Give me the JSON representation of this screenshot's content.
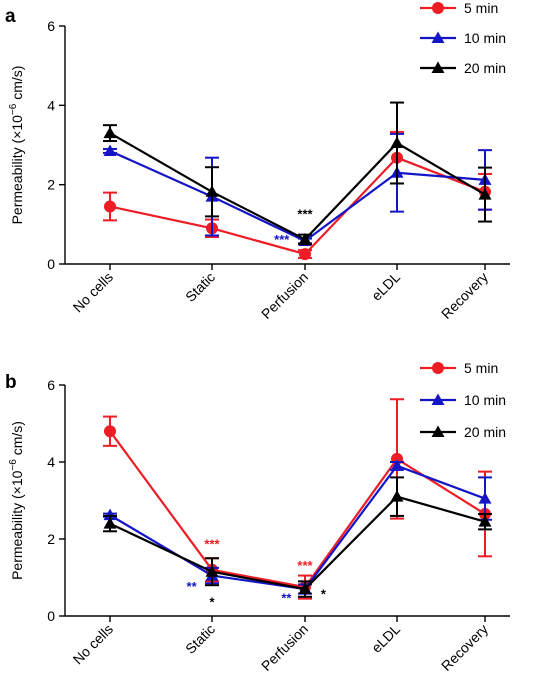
{
  "chart_data": [
    {
      "panel": "a",
      "type": "line",
      "ylabel": {
        "pre": "Permeability (×10",
        "exp": "−6",
        "post": " cm/s)"
      },
      "ylim": [
        0,
        6
      ],
      "yticks": [
        "0",
        "2",
        "4",
        "6"
      ],
      "categories": [
        "No cells",
        "Static",
        "Perfusion",
        "eLDL",
        "Recovery"
      ],
      "legend_position": "top-right",
      "series": [
        {
          "name": "5 min",
          "color": "#ee1c25",
          "marker": "circle",
          "values": [
            1.45,
            0.9,
            0.25,
            2.68,
            1.82
          ],
          "err": [
            0.35,
            0.22,
            0.1,
            0.65,
            0.45
          ]
        },
        {
          "name": "10 min",
          "color": "#1515c8",
          "marker": "triangle",
          "values": [
            2.85,
            1.7,
            0.58,
            2.3,
            2.12
          ],
          "err": [
            0.05,
            0.98,
            0.06,
            0.98,
            0.75
          ]
        },
        {
          "name": "20 min",
          "color": "#000000",
          "marker": "triangle",
          "values": [
            3.3,
            1.82,
            0.62,
            3.05,
            1.75
          ],
          "err": [
            0.2,
            0.62,
            0.12,
            1.02,
            0.68
          ]
        }
      ],
      "annotations": [
        {
          "text": "***",
          "color": "#000000",
          "category": 2,
          "y": 1.15
        },
        {
          "text": "***",
          "color": "#1515c8",
          "category": 1.75,
          "y": 0.5
        }
      ]
    },
    {
      "panel": "b",
      "type": "line",
      "ylabel": {
        "pre": "Permeability (×10",
        "exp": "−6",
        "post": " cm/s)"
      },
      "ylim": [
        0,
        6
      ],
      "yticks": [
        "0",
        "2",
        "4",
        "6"
      ],
      "categories": [
        "No cells",
        "Static",
        "Perfusion",
        "eLDL",
        "Recovery"
      ],
      "legend_position": "top-right",
      "series": [
        {
          "name": "5 min",
          "color": "#ee1c25",
          "marker": "circle",
          "values": [
            4.8,
            1.2,
            0.75,
            4.08,
            2.65
          ],
          "err": [
            0.38,
            0.3,
            0.3,
            1.55,
            1.1
          ]
        },
        {
          "name": "10 min",
          "color": "#1515c8",
          "marker": "triangle",
          "values": [
            2.62,
            1.05,
            0.7,
            3.9,
            3.05
          ],
          "err": [
            0.04,
            0.2,
            0.12,
            0.1,
            0.55
          ]
        },
        {
          "name": "20 min",
          "color": "#000000",
          "marker": "triangle",
          "values": [
            2.4,
            1.15,
            0.7,
            3.1,
            2.45
          ],
          "err": [
            0.2,
            0.35,
            0.2,
            0.5,
            0.2
          ]
        }
      ],
      "annotations": [
        {
          "text": "***",
          "color": "#ee1c25",
          "category": 1,
          "y": 1.75
        },
        {
          "text": "**",
          "color": "#1515c8",
          "category": 0.8,
          "y": 0.65
        },
        {
          "text": "*",
          "color": "#000000",
          "category": 1,
          "y": 0.25
        },
        {
          "text": "***",
          "color": "#ee1c25",
          "category": 2,
          "y": 1.2
        },
        {
          "text": "**",
          "color": "#1515c8",
          "category": 1.8,
          "y": 0.35
        },
        {
          "text": "*",
          "color": "#000000",
          "category": 2.2,
          "y": 0.45
        }
      ]
    }
  ]
}
